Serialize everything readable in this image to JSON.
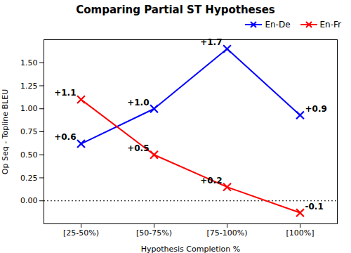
{
  "chart_data": {
    "type": "line",
    "title": "Comparing Partial ST Hypotheses",
    "xlabel": "Hypothesis Completion %",
    "ylabel": "Op Seq - Topline BLEU",
    "categories": [
      "[25-50%)",
      "[50-75%)",
      "[75-100%)",
      "[100%]"
    ],
    "series": [
      {
        "name": "En-De",
        "color": "#0000ff",
        "marker": "x",
        "values": [
          0.62,
          1.0,
          1.65,
          0.93
        ],
        "value_labels": [
          "+0.6",
          "+1.0",
          "+1.7",
          "+0.9"
        ]
      },
      {
        "name": "En-Fr",
        "color": "#ff0000",
        "marker": "x",
        "values": [
          1.1,
          0.5,
          0.15,
          -0.13
        ],
        "value_labels": [
          "+1.1",
          "+0.5",
          "+0.2",
          "-0.1"
        ]
      }
    ],
    "hlines": [
      0
    ],
    "ylim": [
      -0.25,
      1.75
    ],
    "yticks": [
      {
        "value": 0.0,
        "label": "0.00"
      },
      {
        "value": 0.25,
        "label": "0.25"
      },
      {
        "value": 0.5,
        "label": "0.50"
      },
      {
        "value": 0.75,
        "label": "0.75"
      },
      {
        "value": 1.0,
        "label": "1.00"
      },
      {
        "value": 1.25,
        "label": "1.25"
      },
      {
        "value": 1.5,
        "label": "1.50"
      }
    ],
    "data_labels": true,
    "legend": "upper right",
    "grid": false
  }
}
